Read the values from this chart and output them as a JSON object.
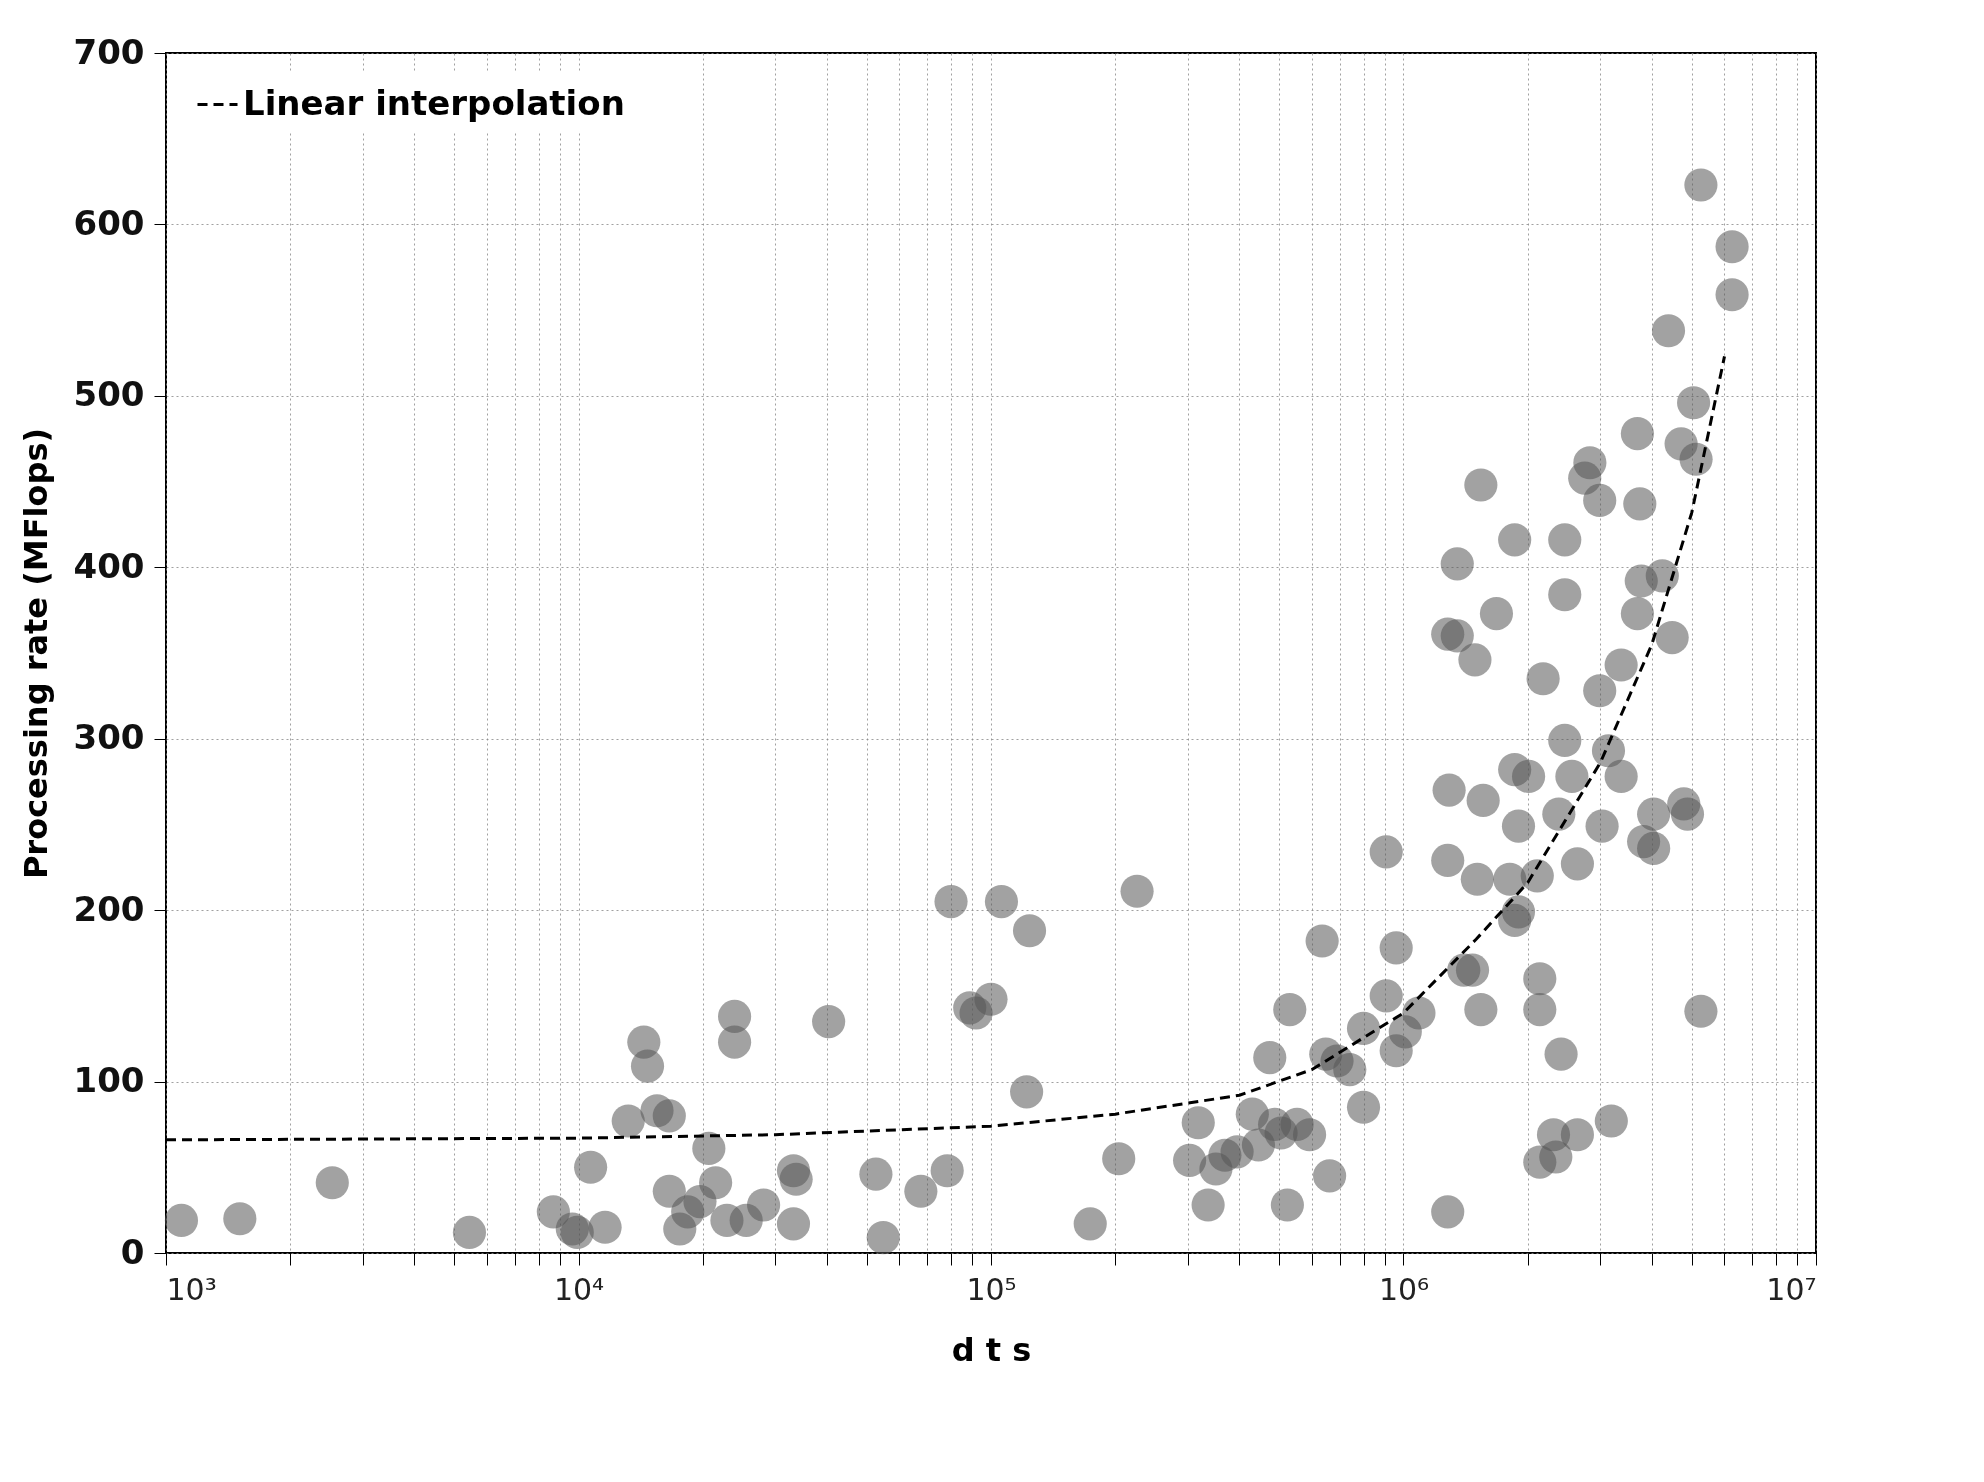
{
  "chart_data": {
    "type": "scatter",
    "xlabel": "d t s",
    "ylabel": "Processing rate (MFlops)",
    "log": "x",
    "xlim": [
      1000,
      10000000
    ],
    "ylim": [
      0,
      700
    ],
    "xticks": [
      {
        "value": 1000,
        "label": "10³"
      },
      {
        "value": 2000,
        "label": null
      },
      {
        "value": 3000,
        "label": null
      },
      {
        "value": 4000,
        "label": null
      },
      {
        "value": 5000,
        "label": null
      },
      {
        "value": 6000,
        "label": null
      },
      {
        "value": 7000,
        "label": null
      },
      {
        "value": 8000,
        "label": null
      },
      {
        "value": 9000,
        "label": null
      },
      {
        "value": 10000,
        "label": "10⁴"
      },
      {
        "value": 20000,
        "label": null
      },
      {
        "value": 30000,
        "label": null
      },
      {
        "value": 40000,
        "label": null
      },
      {
        "value": 50000,
        "label": null
      },
      {
        "value": 60000,
        "label": null
      },
      {
        "value": 70000,
        "label": null
      },
      {
        "value": 80000,
        "label": null
      },
      {
        "value": 90000,
        "label": null
      },
      {
        "value": 100000,
        "label": "10⁵"
      },
      {
        "value": 200000,
        "label": null
      },
      {
        "value": 300000,
        "label": null
      },
      {
        "value": 400000,
        "label": null
      },
      {
        "value": 500000,
        "label": null
      },
      {
        "value": 600000,
        "label": null
      },
      {
        "value": 700000,
        "label": null
      },
      {
        "value": 800000,
        "label": null
      },
      {
        "value": 900000,
        "label": null
      },
      {
        "value": 1000000,
        "label": "10⁶"
      },
      {
        "value": 2000000,
        "label": null
      },
      {
        "value": 3000000,
        "label": null
      },
      {
        "value": 4000000,
        "label": null
      },
      {
        "value": 5000000,
        "label": null
      },
      {
        "value": 6000000,
        "label": null
      },
      {
        "value": 7000000,
        "label": null
      },
      {
        "value": 8000000,
        "label": null
      },
      {
        "value": 9000000,
        "label": null
      },
      {
        "value": 10000000,
        "label": "10⁷"
      }
    ],
    "yticks": [
      0,
      100,
      200,
      300,
      400,
      500,
      600,
      700
    ],
    "grid": true,
    "legend": "top left",
    "marker": "circle",
    "series": [
      {
        "color": "#555555",
        "x": [
          1090,
          1510,
          2530,
          5440,
          8690,
          9660,
          9930,
          10700,
          11600,
          13200,
          14400,
          14700,
          15500,
          16600,
          16600,
          17600,
          18400,
          19700,
          20700,
          21500,
          22900,
          23900,
          23900,
          25500,
          28100,
          33200,
          33700,
          33200,
          40400,
          52600,
          54800,
          67600,
          78300,
          80000,
          88800,
          92000,
          100000,
          106000,
          124000,
          122000,
          174000,
          204000,
          226000,
          303000,
          318000,
          336000,
          351000,
          369000,
          395000,
          430000,
          445000,
          474000,
          487000,
          505000,
          523000,
          530000,
          552000,
          592000,
          635000,
          648000,
          662000,
          690000,
          741000,
          800000,
          800000,
          908000,
          908000,
          960000,
          960000,
          1010000,
          1090000,
          1280000,
          1280000,
          1290000,
          1280000,
          1350000,
          1350000,
          1400000,
          1470000,
          1490000,
          1510000,
          1540000,
          1540000,
          1560000,
          1680000,
          1810000,
          1860000,
          1860000,
          1860000,
          1900000,
          1900000,
          2010000,
          2110000,
          2140000,
          2140000,
          2140000,
          2180000,
          2310000,
          2340000,
          2380000,
          2410000,
          2460000,
          2460000,
          2460000,
          2560000,
          2640000,
          2640000,
          2750000,
          2830000,
          2990000,
          2990000,
          3030000,
          3140000,
          3190000,
          3370000,
          3370000,
          3690000,
          3690000,
          3740000,
          3770000,
          3820000,
          4040000,
          4040000,
          4240000,
          4390000,
          4480000,
          4710000,
          4780000,
          4880000,
          5050000,
          5120000,
          5260000,
          5260000,
          6260000,
          6260000
        ],
        "values": [
          19,
          20,
          41,
          12,
          24,
          14,
          12,
          50,
          15,
          77,
          123,
          109,
          83,
          80,
          36,
          14,
          24,
          30,
          61,
          41,
          19,
          138,
          123,
          19,
          28,
          48,
          43,
          17,
          135,
          46,
          9,
          36,
          48,
          205,
          143,
          140,
          148,
          205,
          188,
          94,
          17,
          55,
          211,
          54,
          76,
          28,
          49,
          57,
          59,
          81,
          63,
          114,
          75,
          70,
          28,
          142,
          75,
          69,
          182,
          116,
          45,
          112,
          107,
          85,
          131,
          234,
          150,
          178,
          118,
          129,
          140,
          24,
          229,
          270,
          361,
          402,
          360,
          165,
          165,
          346,
          218,
          142,
          448,
          264,
          373,
          218,
          416,
          282,
          194,
          249,
          199,
          278,
          220,
          160,
          142,
          53,
          335,
          69,
          56,
          256,
          116,
          416,
          384,
          299,
          278,
          227,
          69,
          452,
          461,
          439,
          328,
          249,
          293,
          77,
          343,
          278,
          373,
          478,
          437,
          392,
          240,
          236,
          256,
          395,
          538,
          359,
          472,
          262,
          256,
          496,
          463,
          141,
          623,
          587,
          559
        ]
      },
      {
        "type": "line",
        "name": "Linear interpolation",
        "color": "#000000",
        "line_style": "dashed",
        "marker": "none",
        "x": [
          1000,
          10000,
          30000,
          100000,
          200000,
          400000,
          600000,
          1000000,
          1500000,
          2000000,
          3000000,
          4000000,
          5000000,
          6000000
        ],
        "values": [
          66,
          67,
          69,
          74,
          81,
          92,
          107,
          140,
          183,
          216,
          286,
          355,
          432,
          523
        ]
      }
    ]
  }
}
